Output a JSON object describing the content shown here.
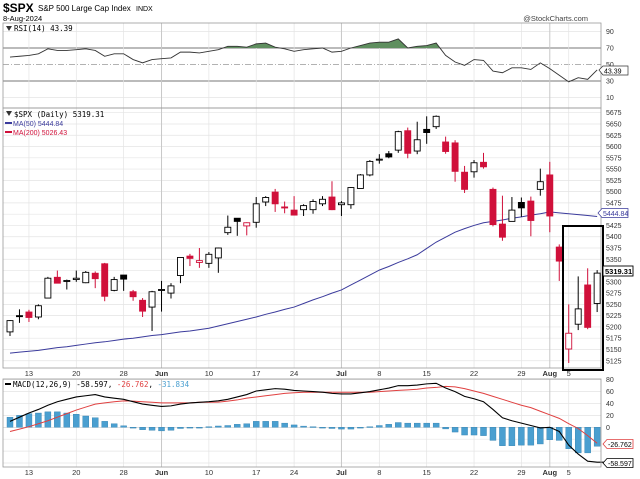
{
  "header": {
    "symbol": "$SPX",
    "name": "S&P 500 Large Cap Index",
    "exchange": "INDX",
    "date": "8-Aug-2024",
    "copyright": "@StockCharts.com"
  },
  "rsi_panel": {
    "label": "RSI(14) 43.39",
    "last_value": "43.39",
    "ticks": [
      "90",
      "70",
      "50",
      "30",
      "10"
    ]
  },
  "price_panel": {
    "label": "$SPX (Daily) 5319.31",
    "ma50_label": "MA(50) 5444.84",
    "ma200_label": "MA(200) 5026.43",
    "last_price": "5319.31",
    "ma50_last": "5444.84",
    "ticks": [
      "5675",
      "5650",
      "5625",
      "5600",
      "5575",
      "5550",
      "5525",
      "5500",
      "5475",
      "5425",
      "5400",
      "5375",
      "5350",
      "5300",
      "5275",
      "5250",
      "5225",
      "5200",
      "5175",
      "5150",
      "5125"
    ]
  },
  "macd_panel": {
    "label_name": "MACD(12,26,9)",
    "macd_value": "-58.597",
    "signal_value": "-26.762",
    "hist_value": "-31.834",
    "macd_last": "-58.597",
    "signal_last": "-26.762",
    "ticks": [
      "80",
      "60",
      "40",
      "20",
      "0"
    ]
  },
  "date_ticks": [
    {
      "label": "13",
      "index": 2,
      "month": false
    },
    {
      "label": "20",
      "index": 7,
      "month": false
    },
    {
      "label": "28",
      "index": 12,
      "month": false
    },
    {
      "label": "Jun",
      "index": 16,
      "month": true
    },
    {
      "label": "10",
      "index": 21,
      "month": false
    },
    {
      "label": "17",
      "index": 26,
      "month": false
    },
    {
      "label": "24",
      "index": 30,
      "month": false
    },
    {
      "label": "Jul",
      "index": 35,
      "month": true
    },
    {
      "label": "8",
      "index": 39,
      "month": false
    },
    {
      "label": "15",
      "index": 44,
      "month": false
    },
    {
      "label": "22",
      "index": 49,
      "month": false
    },
    {
      "label": "29",
      "index": 54,
      "month": false
    },
    {
      "label": "Aug",
      "index": 57,
      "month": true
    },
    {
      "label": "5",
      "index": 59,
      "month": false
    }
  ],
  "colors": {
    "up": "#000000",
    "down": "#d0103a",
    "ma50": "#3b3b9c",
    "ma200": "#d0103a",
    "macd": "#000000",
    "signal": "#e04040",
    "histogram": "#4a9fd0",
    "rsi_fill": "#5f8f5f"
  },
  "chart_data": {
    "type": "candlestick",
    "price_ylim": [
      5125,
      5675
    ],
    "rsi_ylim": [
      0,
      100
    ],
    "macd_ylim": [
      -60,
      80
    ],
    "grid": true,
    "dates": [
      "2024-05-09",
      "2024-05-10",
      "2024-05-13",
      "2024-05-14",
      "2024-05-15",
      "2024-05-16",
      "2024-05-17",
      "2024-05-20",
      "2024-05-21",
      "2024-05-22",
      "2024-05-23",
      "2024-05-24",
      "2024-05-28",
      "2024-05-29",
      "2024-05-30",
      "2024-05-31",
      "2024-06-03",
      "2024-06-04",
      "2024-06-05",
      "2024-06-06",
      "2024-06-07",
      "2024-06-10",
      "2024-06-11",
      "2024-06-12",
      "2024-06-13",
      "2024-06-14",
      "2024-06-17",
      "2024-06-18",
      "2024-06-20",
      "2024-06-21",
      "2024-06-24",
      "2024-06-25",
      "2024-06-26",
      "2024-06-27",
      "2024-06-28",
      "2024-07-01",
      "2024-07-02",
      "2024-07-03",
      "2024-07-05",
      "2024-07-08",
      "2024-07-09",
      "2024-07-10",
      "2024-07-11",
      "2024-07-12",
      "2024-07-15",
      "2024-07-16",
      "2024-07-17",
      "2024-07-18",
      "2024-07-19",
      "2024-07-22",
      "2024-07-23",
      "2024-07-24",
      "2024-07-25",
      "2024-07-26",
      "2024-07-29",
      "2024-07-30",
      "2024-07-31",
      "2024-08-01",
      "2024-08-02",
      "2024-08-05",
      "2024-08-06",
      "2024-08-07",
      "2024-08-08"
    ],
    "ohlc": [
      [
        5189,
        5215,
        5180,
        5214
      ],
      [
        5225,
        5239,
        5209,
        5223
      ],
      [
        5233,
        5238,
        5211,
        5221
      ],
      [
        5222,
        5250,
        5217,
        5247
      ],
      [
        5264,
        5311,
        5263,
        5308
      ],
      [
        5310,
        5325,
        5297,
        5297
      ],
      [
        5303,
        5305,
        5283,
        5303
      ],
      [
        5305,
        5325,
        5300,
        5308
      ],
      [
        5298,
        5324,
        5297,
        5321
      ],
      [
        5319,
        5323,
        5286,
        5307
      ],
      [
        5340,
        5342,
        5257,
        5268
      ],
      [
        5281,
        5311,
        5279,
        5305
      ],
      [
        5315,
        5315,
        5280,
        5306
      ],
      [
        5278,
        5282,
        5258,
        5267
      ],
      [
        5259,
        5264,
        5222,
        5235
      ],
      [
        5244,
        5280,
        5191,
        5278
      ],
      [
        5283,
        5302,
        5234,
        5283
      ],
      [
        5275,
        5297,
        5263,
        5291
      ],
      [
        5314,
        5354,
        5297,
        5354
      ],
      [
        5357,
        5362,
        5335,
        5352
      ],
      [
        5343,
        5375,
        5331,
        5347
      ],
      [
        5341,
        5366,
        5331,
        5361
      ],
      [
        5353,
        5376,
        5320,
        5375
      ],
      [
        5409,
        5447,
        5404,
        5421
      ],
      [
        5441,
        5441,
        5402,
        5434
      ],
      [
        5424,
        5432,
        5403,
        5431
      ],
      [
        5432,
        5488,
        5420,
        5473
      ],
      [
        5477,
        5490,
        5468,
        5487
      ],
      [
        5499,
        5506,
        5455,
        5473
      ],
      [
        5466,
        5478,
        5452,
        5465
      ],
      [
        5459,
        5490,
        5447,
        5448
      ],
      [
        5460,
        5472,
        5446,
        5469
      ],
      [
        5460,
        5483,
        5451,
        5478
      ],
      [
        5473,
        5490,
        5468,
        5483
      ],
      [
        5488,
        5523,
        5459,
        5460
      ],
      [
        5471,
        5479,
        5446,
        5475
      ],
      [
        5471,
        5510,
        5462,
        5509
      ],
      [
        5507,
        5539,
        5507,
        5537
      ],
      [
        5537,
        5570,
        5534,
        5567
      ],
      [
        5572,
        5583,
        5562,
        5572
      ],
      [
        5584,
        5590,
        5574,
        5577
      ],
      [
        5592,
        5635,
        5586,
        5633
      ],
      [
        5635,
        5642,
        5574,
        5585
      ],
      [
        5590,
        5655,
        5583,
        5615
      ],
      [
        5638,
        5667,
        5606,
        5631
      ],
      [
        5644,
        5669,
        5639,
        5667
      ],
      [
        5610,
        5622,
        5584,
        5589
      ],
      [
        5608,
        5614,
        5522,
        5545
      ],
      [
        5543,
        5557,
        5497,
        5505
      ],
      [
        5544,
        5570,
        5531,
        5564
      ],
      [
        5565,
        5586,
        5551,
        5555
      ],
      [
        5505,
        5509,
        5423,
        5427
      ],
      [
        5428,
        5491,
        5391,
        5399
      ],
      [
        5434,
        5488,
        5434,
        5459
      ],
      [
        5476,
        5487,
        5444,
        5464
      ],
      [
        5479,
        5489,
        5401,
        5436
      ],
      [
        5505,
        5551,
        5491,
        5522
      ],
      [
        5537,
        5566,
        5410,
        5446
      ],
      [
        5377,
        5383,
        5302,
        5346
      ],
      [
        5151,
        5250,
        5120,
        5186
      ],
      [
        5206,
        5312,
        5193,
        5240
      ],
      [
        5293,
        5330,
        5195,
        5199
      ],
      [
        5252,
        5326,
        5233,
        5319.31
      ]
    ],
    "ma50": [
      5142,
      5144,
      5146,
      5148,
      5151,
      5154,
      5156,
      5159,
      5162,
      5165,
      5167,
      5170,
      5173,
      5175,
      5178,
      5181,
      5183,
      5186,
      5189,
      5191,
      5194,
      5197,
      5202,
      5207,
      5212,
      5217,
      5222,
      5228,
      5233,
      5239,
      5244,
      5252,
      5260,
      5267,
      5275,
      5282,
      5293,
      5304,
      5315,
      5326,
      5334,
      5343,
      5351,
      5360,
      5374,
      5388,
      5399,
      5410,
      5418,
      5425,
      5431,
      5434,
      5437,
      5441,
      5444,
      5448,
      5451,
      5455,
      5453,
      5451,
      5449,
      5447,
      5444.84
    ],
    "rsi": [
      59,
      60,
      61,
      63,
      69,
      67,
      67,
      68,
      69,
      67,
      60,
      63,
      63,
      56,
      52,
      56,
      57,
      58,
      65,
      65,
      64,
      66,
      68,
      72,
      72,
      71,
      75,
      76,
      71,
      69,
      66,
      68,
      69,
      70,
      65,
      66,
      70,
      73,
      76,
      77,
      77,
      81,
      70,
      72,
      73,
      76,
      61,
      53,
      49,
      56,
      55,
      42,
      40,
      46,
      46,
      44,
      52,
      45,
      37,
      29,
      34,
      32,
      43.39
    ],
    "macd": [
      10,
      17,
      24,
      30,
      37,
      43,
      47,
      51,
      53,
      55,
      51,
      49,
      47,
      43,
      39,
      37,
      35,
      36,
      39,
      41,
      42,
      43,
      44.5,
      47,
      51,
      55,
      61,
      63,
      65,
      64,
      62,
      61,
      60,
      59,
      57,
      56,
      56,
      58,
      60,
      63,
      66,
      70,
      70,
      71,
      73,
      74,
      66,
      60,
      52,
      48,
      43,
      30,
      16,
      11,
      7,
      3,
      -1,
      0,
      -7,
      -30,
      -45,
      -57,
      -58.597
    ],
    "signal": [
      -7,
      -3,
      1,
      6,
      11,
      17,
      23,
      29,
      34,
      39,
      41,
      43,
      44.5,
      44,
      43,
      42,
      41,
      41,
      41,
      41,
      42,
      42,
      42.3,
      44,
      46,
      49,
      51,
      53,
      55,
      57,
      58,
      59,
      59,
      59,
      59,
      59,
      59,
      59,
      59,
      60,
      61,
      62,
      63,
      64,
      66,
      67,
      68.7,
      68,
      65,
      61,
      57,
      52,
      47,
      42,
      37,
      33,
      27,
      21,
      15,
      6,
      -2,
      -14,
      -26.762
    ]
  }
}
